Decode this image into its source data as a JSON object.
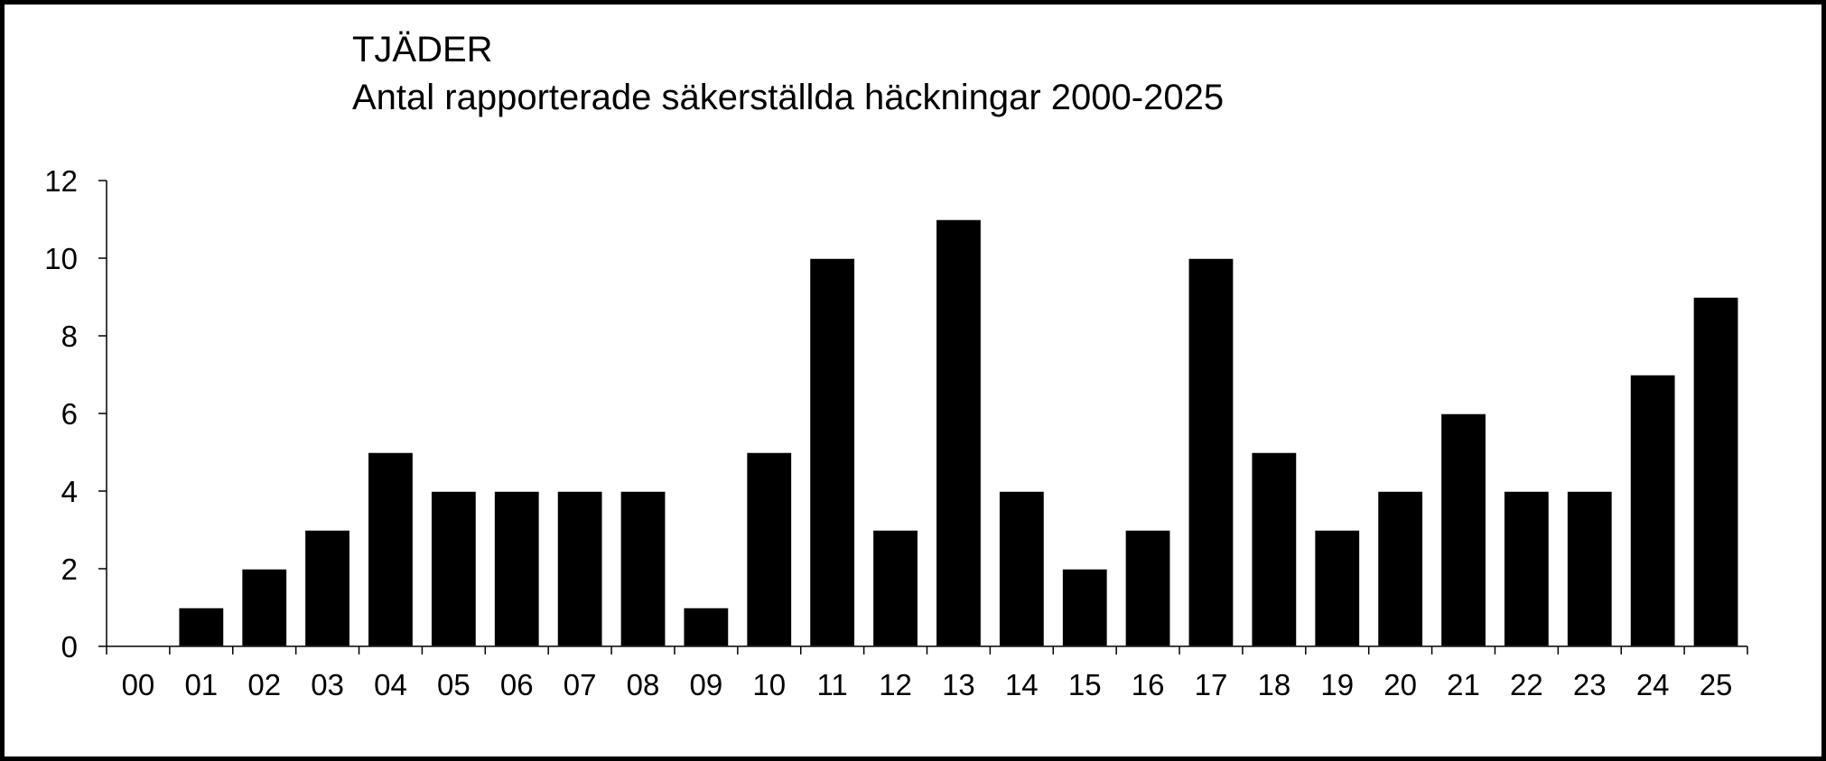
{
  "chart_data": {
    "type": "bar",
    "title": "TJÄDER",
    "subtitle": "Antal rapporterade säkerställda häckningar 2000-2025",
    "xlabel": "",
    "ylabel": "",
    "categories": [
      "00",
      "01",
      "02",
      "03",
      "04",
      "05",
      "06",
      "07",
      "08",
      "09",
      "10",
      "11",
      "12",
      "13",
      "14",
      "15",
      "16",
      "17",
      "18",
      "19",
      "20",
      "21",
      "22",
      "23",
      "24",
      "25"
    ],
    "values": [
      0,
      1,
      2,
      3,
      5,
      4,
      4,
      4,
      4,
      1,
      5,
      10,
      3,
      11,
      4,
      2,
      3,
      10,
      5,
      3,
      4,
      6,
      4,
      4,
      7,
      9
    ],
    "ylim": [
      0,
      12
    ],
    "yticks": [
      "0",
      "2",
      "4",
      "6",
      "8",
      "10",
      "12"
    ],
    "grid": false,
    "legend": "none",
    "bar_color": "#000000"
  }
}
